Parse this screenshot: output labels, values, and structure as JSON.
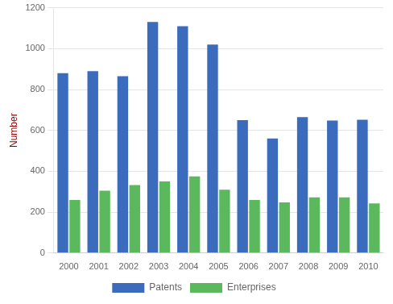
{
  "chart_data": {
    "type": "bar",
    "categories": [
      "2000",
      "2001",
      "2002",
      "2003",
      "2004",
      "2005",
      "2006",
      "2007",
      "2008",
      "2009",
      "2010"
    ],
    "series": [
      {
        "name": "Patents",
        "color": "#3a6bbd",
        "values": [
          880,
          890,
          865,
          1130,
          1110,
          1020,
          650,
          560,
          665,
          648,
          652
        ]
      },
      {
        "name": "Enterprises",
        "color": "#5cb85c",
        "values": [
          260,
          305,
          333,
          350,
          375,
          310,
          260,
          248,
          272,
          272,
          243
        ]
      }
    ],
    "ylabel": "Number",
    "ylim": [
      0,
      1200
    ],
    "yticks": [
      0,
      200,
      400,
      600,
      800,
      1000,
      1200
    ],
    "grid": true,
    "legend": "bottom"
  }
}
